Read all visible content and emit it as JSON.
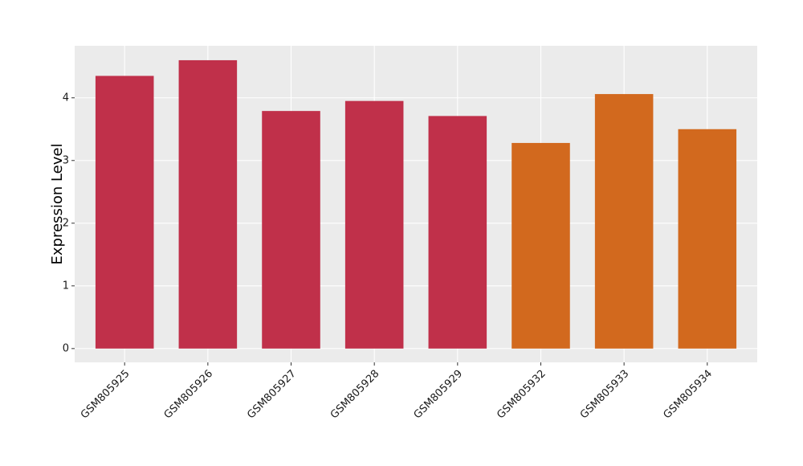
{
  "chart_data": {
    "type": "bar",
    "y_label": "Expression Level",
    "categories": [
      "GSM805925",
      "GSM805926",
      "GSM805927",
      "GSM805928",
      "GSM805929",
      "GSM805932",
      "GSM805933",
      "GSM805934"
    ],
    "values": [
      4.35,
      4.6,
      3.79,
      3.95,
      3.71,
      3.28,
      4.06,
      3.5
    ],
    "colors": [
      "#c0304a",
      "#c0304a",
      "#c0304a",
      "#c0304a",
      "#c0304a",
      "#d2691e",
      "#d2691e",
      "#d2691e"
    ],
    "ylim": [
      -0.22,
      4.83
    ],
    "yticks": [
      0,
      1,
      2,
      3,
      4
    ],
    "grid": true
  }
}
